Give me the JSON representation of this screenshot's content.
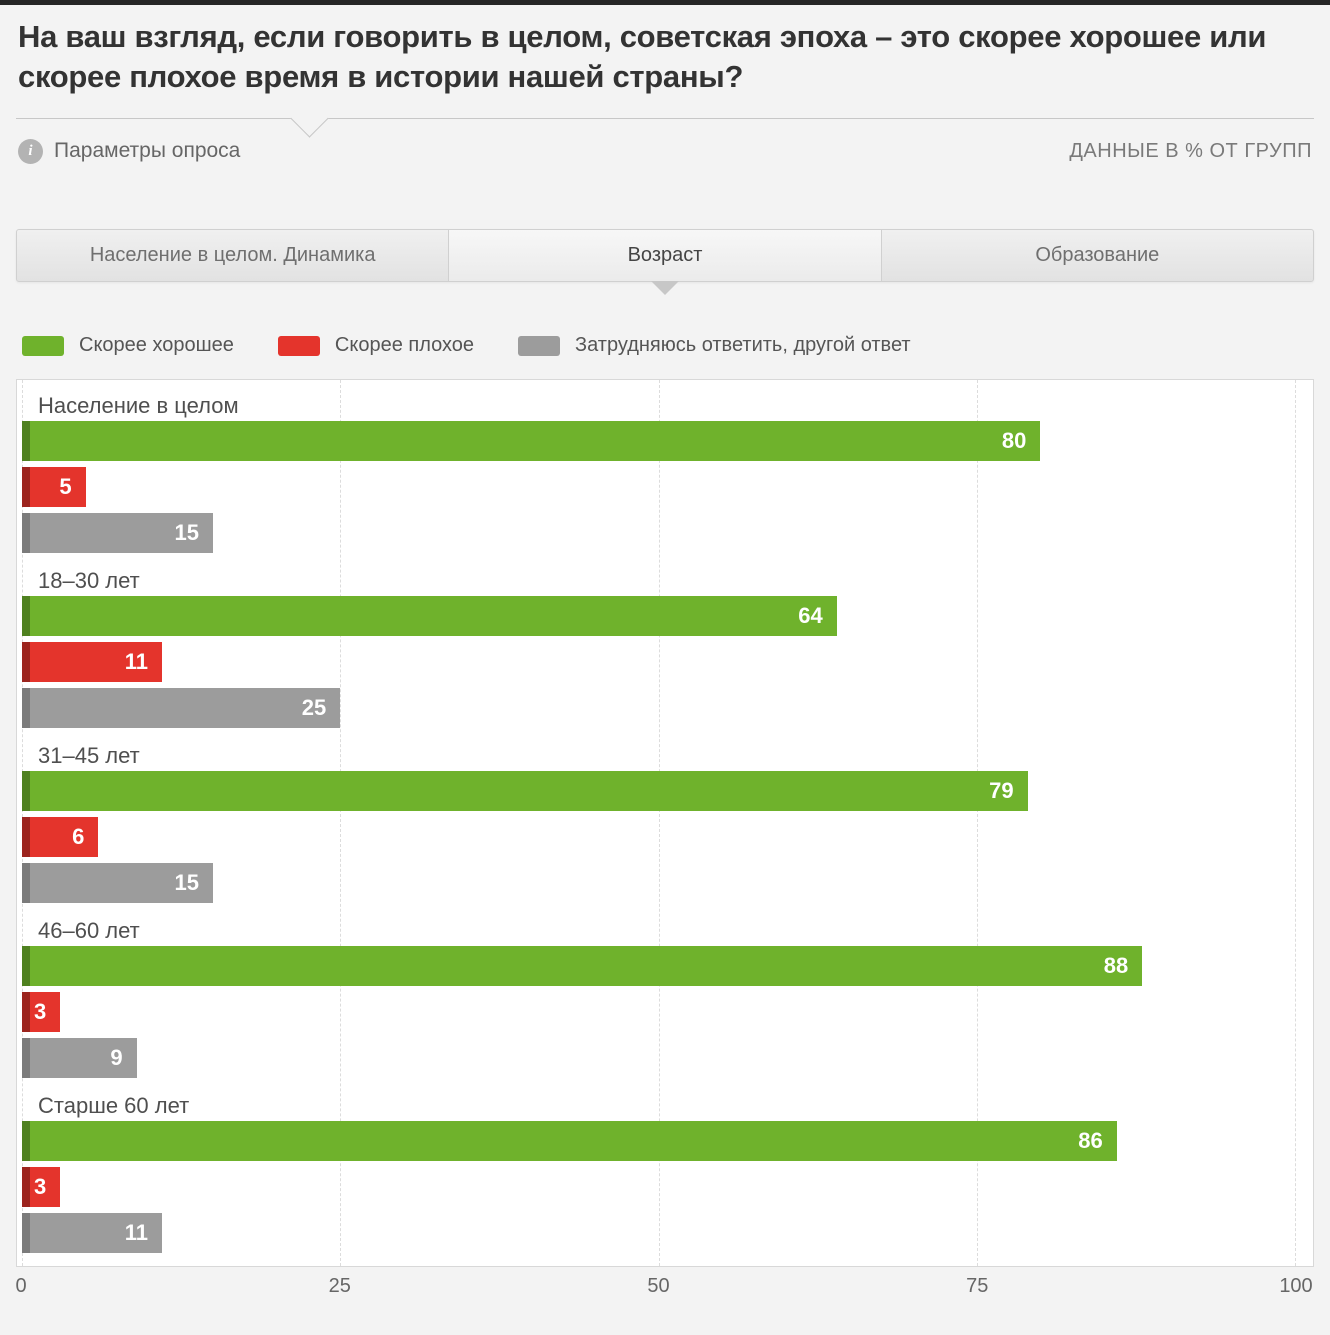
{
  "header": {
    "title": "На ваш взгляд, если говорить в целом, советская эпоха – это скорее хорошее или скорее плохое время в истории нашей страны?",
    "params_link": "Параметры опроса",
    "data_note": "ДАННЫЕ В % ОТ ГРУПП"
  },
  "tabs": [
    {
      "label": "Население в целом. Динамика",
      "active": false
    },
    {
      "label": "Возраст",
      "active": true
    },
    {
      "label": "Образование",
      "active": false
    }
  ],
  "legend": [
    {
      "label": "Скорее хорошее",
      "color": "#6fb22c"
    },
    {
      "label": "Скорее плохое",
      "color": "#e4342c"
    },
    {
      "label": "Затрудняюсь ответить, другой ответ",
      "color": "#9c9c9c"
    }
  ],
  "chart_data": {
    "type": "bar",
    "orientation": "horizontal",
    "title": "",
    "categories": [
      "Население в целом",
      "18–30 лет",
      "31–45 лет",
      "46–60 лет",
      "Старше 60 лет"
    ],
    "series": [
      {
        "name": "Скорее хорошее",
        "color": "#6fb22c",
        "edge_color": "#4f8120",
        "values": [
          80,
          64,
          79,
          88,
          86
        ]
      },
      {
        "name": "Скорее плохое",
        "color": "#e4342c",
        "edge_color": "#9c241e",
        "values": [
          5,
          11,
          6,
          3,
          3
        ]
      },
      {
        "name": "Затрудняюсь ответить, другой ответ",
        "color": "#9c9c9c",
        "edge_color": "#7b7b7b",
        "values": [
          15,
          25,
          15,
          9,
          11
        ]
      }
    ],
    "value_label_color": "#ffffff",
    "xlim": [
      0,
      100
    ],
    "x_ticks": [
      0,
      25,
      50,
      75,
      100
    ],
    "grid": "dashed-vertical",
    "legend_position": "top",
    "units": "% от групп"
  }
}
